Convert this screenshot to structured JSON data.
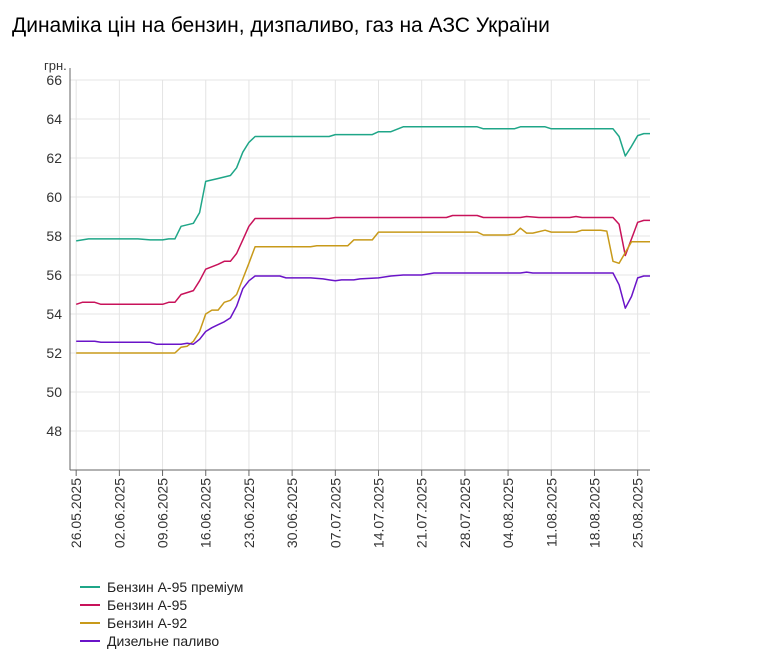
{
  "title": "Динаміка цін на бензин, дизпаливо, газ на АЗС України",
  "chart_data": {
    "type": "line",
    "title": "Динаміка цін на бензин, дизпаливо, газ на АЗС України",
    "ylabel": "грн.",
    "ylim": [
      46,
      66
    ],
    "yticks": [
      48,
      50,
      52,
      54,
      56,
      58,
      60,
      62,
      64,
      66
    ],
    "x_range": [
      "2025-05-25",
      "2025-08-27"
    ],
    "xticks": [
      {
        "date": "2025-05-26",
        "label": "26.05.2025"
      },
      {
        "date": "2025-06-02",
        "label": "02.06.2025"
      },
      {
        "date": "2025-06-09",
        "label": "09.06.2025"
      },
      {
        "date": "2025-06-16",
        "label": "16.06.2025"
      },
      {
        "date": "2025-06-23",
        "label": "23.06.2025"
      },
      {
        "date": "2025-06-30",
        "label": "30.06.2025"
      },
      {
        "date": "2025-07-07",
        "label": "07.07.2025"
      },
      {
        "date": "2025-07-14",
        "label": "14.07.2025"
      },
      {
        "date": "2025-07-21",
        "label": "21.07.2025"
      },
      {
        "date": "2025-07-28",
        "label": "28.07.2025"
      },
      {
        "date": "2025-08-04",
        "label": "04.08.2025"
      },
      {
        "date": "2025-08-11",
        "label": "11.08.2025"
      },
      {
        "date": "2025-08-18",
        "label": "18.08.2025"
      },
      {
        "date": "2025-08-25",
        "label": "25.08.2025"
      }
    ],
    "grid": true,
    "legend_position": "bottom-left",
    "series": [
      {
        "name": "Бензин А-95 преміум",
        "color": "#1fa688",
        "points": [
          [
            "2025-05-26",
            57.75
          ],
          [
            "2025-05-28",
            57.85
          ],
          [
            "2025-06-02",
            57.85
          ],
          [
            "2025-06-05",
            57.85
          ],
          [
            "2025-06-07",
            57.8
          ],
          [
            "2025-06-09",
            57.8
          ],
          [
            "2025-06-10",
            57.85
          ],
          [
            "2025-06-11",
            57.85
          ],
          [
            "2025-06-12",
            58.5
          ],
          [
            "2025-06-14",
            58.65
          ],
          [
            "2025-06-15",
            59.2
          ],
          [
            "2025-06-16",
            60.8
          ],
          [
            "2025-06-18",
            60.95
          ],
          [
            "2025-06-20",
            61.1
          ],
          [
            "2025-06-21",
            61.5
          ],
          [
            "2025-06-22",
            62.3
          ],
          [
            "2025-06-23",
            62.8
          ],
          [
            "2025-06-24",
            63.1
          ],
          [
            "2025-06-28",
            63.1
          ],
          [
            "2025-07-03",
            63.1
          ],
          [
            "2025-07-06",
            63.1
          ],
          [
            "2025-07-07",
            63.2
          ],
          [
            "2025-07-13",
            63.2
          ],
          [
            "2025-07-14",
            63.35
          ],
          [
            "2025-07-16",
            63.35
          ],
          [
            "2025-07-18",
            63.6
          ],
          [
            "2025-07-22",
            63.6
          ],
          [
            "2025-07-30",
            63.6
          ],
          [
            "2025-07-31",
            63.5
          ],
          [
            "2025-08-05",
            63.5
          ],
          [
            "2025-08-06",
            63.6
          ],
          [
            "2025-08-10",
            63.6
          ],
          [
            "2025-08-11",
            63.5
          ],
          [
            "2025-08-18",
            63.5
          ],
          [
            "2025-08-21",
            63.5
          ],
          [
            "2025-08-22",
            63.1
          ],
          [
            "2025-08-23",
            62.1
          ],
          [
            "2025-08-24",
            62.6
          ],
          [
            "2025-08-25",
            63.15
          ],
          [
            "2025-08-26",
            63.25
          ],
          [
            "2025-08-27",
            63.25
          ]
        ]
      },
      {
        "name": "Бензин А-95",
        "color": "#c8125a",
        "points": [
          [
            "2025-05-26",
            54.5
          ],
          [
            "2025-05-27",
            54.6
          ],
          [
            "2025-05-29",
            54.6
          ],
          [
            "2025-05-30",
            54.5
          ],
          [
            "2025-06-04",
            54.5
          ],
          [
            "2025-06-09",
            54.5
          ],
          [
            "2025-06-10",
            54.6
          ],
          [
            "2025-06-11",
            54.6
          ],
          [
            "2025-06-12",
            55.0
          ],
          [
            "2025-06-14",
            55.2
          ],
          [
            "2025-06-15",
            55.7
          ],
          [
            "2025-06-16",
            56.3
          ],
          [
            "2025-06-18",
            56.55
          ],
          [
            "2025-06-19",
            56.7
          ],
          [
            "2025-06-20",
            56.7
          ],
          [
            "2025-06-21",
            57.1
          ],
          [
            "2025-06-22",
            57.8
          ],
          [
            "2025-06-23",
            58.5
          ],
          [
            "2025-06-24",
            58.9
          ],
          [
            "2025-06-28",
            58.9
          ],
          [
            "2025-07-03",
            58.9
          ],
          [
            "2025-07-06",
            58.9
          ],
          [
            "2025-07-07",
            58.95
          ],
          [
            "2025-07-14",
            58.95
          ],
          [
            "2025-07-21",
            58.95
          ],
          [
            "2025-07-25",
            58.95
          ],
          [
            "2025-07-26",
            59.05
          ],
          [
            "2025-07-30",
            59.05
          ],
          [
            "2025-07-31",
            58.95
          ],
          [
            "2025-08-06",
            58.95
          ],
          [
            "2025-08-07",
            59.0
          ],
          [
            "2025-08-09",
            58.95
          ],
          [
            "2025-08-14",
            58.95
          ],
          [
            "2025-08-15",
            59.0
          ],
          [
            "2025-08-16",
            58.95
          ],
          [
            "2025-08-21",
            58.95
          ],
          [
            "2025-08-22",
            58.6
          ],
          [
            "2025-08-23",
            57.0
          ],
          [
            "2025-08-25",
            58.7
          ],
          [
            "2025-08-26",
            58.8
          ],
          [
            "2025-08-27",
            58.8
          ]
        ]
      },
      {
        "name": "Бензин А-92",
        "color": "#c89a1a",
        "points": [
          [
            "2025-05-26",
            52.0
          ],
          [
            "2025-06-02",
            52.0
          ],
          [
            "2025-06-09",
            52.0
          ],
          [
            "2025-06-11",
            52.0
          ],
          [
            "2025-06-12",
            52.3
          ],
          [
            "2025-06-13",
            52.35
          ],
          [
            "2025-06-14",
            52.6
          ],
          [
            "2025-06-15",
            53.1
          ],
          [
            "2025-06-16",
            54.0
          ],
          [
            "2025-06-17",
            54.2
          ],
          [
            "2025-06-18",
            54.2
          ],
          [
            "2025-06-19",
            54.6
          ],
          [
            "2025-06-20",
            54.7
          ],
          [
            "2025-06-21",
            55.0
          ],
          [
            "2025-06-22",
            55.8
          ],
          [
            "2025-06-23",
            56.6
          ],
          [
            "2025-06-24",
            57.45
          ],
          [
            "2025-06-28",
            57.45
          ],
          [
            "2025-07-03",
            57.45
          ],
          [
            "2025-07-04",
            57.5
          ],
          [
            "2025-07-09",
            57.5
          ],
          [
            "2025-07-10",
            57.8
          ],
          [
            "2025-07-13",
            57.8
          ],
          [
            "2025-07-14",
            58.2
          ],
          [
            "2025-07-21",
            58.2
          ],
          [
            "2025-07-28",
            58.2
          ],
          [
            "2025-07-30",
            58.2
          ],
          [
            "2025-07-31",
            58.05
          ],
          [
            "2025-08-04",
            58.05
          ],
          [
            "2025-08-05",
            58.1
          ],
          [
            "2025-08-06",
            58.4
          ],
          [
            "2025-08-07",
            58.15
          ],
          [
            "2025-08-08",
            58.15
          ],
          [
            "2025-08-10",
            58.3
          ],
          [
            "2025-08-11",
            58.2
          ],
          [
            "2025-08-15",
            58.2
          ],
          [
            "2025-08-16",
            58.3
          ],
          [
            "2025-08-19",
            58.3
          ],
          [
            "2025-08-20",
            58.25
          ],
          [
            "2025-08-21",
            56.7
          ],
          [
            "2025-08-22",
            56.6
          ],
          [
            "2025-08-24",
            57.7
          ],
          [
            "2025-08-27",
            57.7
          ]
        ]
      },
      {
        "name": "Дизельне паливо",
        "color": "#6a14c8",
        "points": [
          [
            "2025-05-26",
            52.6
          ],
          [
            "2025-05-29",
            52.6
          ],
          [
            "2025-05-30",
            52.55
          ],
          [
            "2025-06-04",
            52.55
          ],
          [
            "2025-06-07",
            52.55
          ],
          [
            "2025-06-08",
            52.45
          ],
          [
            "2025-06-12",
            52.45
          ],
          [
            "2025-06-13",
            52.5
          ],
          [
            "2025-06-14",
            52.45
          ],
          [
            "2025-06-15",
            52.7
          ],
          [
            "2025-06-16",
            53.1
          ],
          [
            "2025-06-17",
            53.3
          ],
          [
            "2025-06-18",
            53.45
          ],
          [
            "2025-06-19",
            53.6
          ],
          [
            "2025-06-20",
            53.8
          ],
          [
            "2025-06-21",
            54.4
          ],
          [
            "2025-06-22",
            55.3
          ],
          [
            "2025-06-23",
            55.7
          ],
          [
            "2025-06-24",
            55.95
          ],
          [
            "2025-06-28",
            55.95
          ],
          [
            "2025-06-29",
            55.85
          ],
          [
            "2025-07-03",
            55.85
          ],
          [
            "2025-07-05",
            55.8
          ],
          [
            "2025-07-06",
            55.75
          ],
          [
            "2025-07-07",
            55.7
          ],
          [
            "2025-07-08",
            55.75
          ],
          [
            "2025-07-10",
            55.75
          ],
          [
            "2025-07-11",
            55.8
          ],
          [
            "2025-07-14",
            55.85
          ],
          [
            "2025-07-16",
            55.95
          ],
          [
            "2025-07-18",
            56.0
          ],
          [
            "2025-07-21",
            56.0
          ],
          [
            "2025-07-23",
            56.1
          ],
          [
            "2025-07-28",
            56.1
          ],
          [
            "2025-08-04",
            56.1
          ],
          [
            "2025-08-06",
            56.1
          ],
          [
            "2025-08-07",
            56.15
          ],
          [
            "2025-08-08",
            56.1
          ],
          [
            "2025-08-14",
            56.1
          ],
          [
            "2025-08-21",
            56.1
          ],
          [
            "2025-08-22",
            55.5
          ],
          [
            "2025-08-23",
            54.3
          ],
          [
            "2025-08-24",
            54.9
          ],
          [
            "2025-08-25",
            55.85
          ],
          [
            "2025-08-26",
            55.95
          ],
          [
            "2025-08-27",
            55.95
          ]
        ]
      }
    ]
  }
}
